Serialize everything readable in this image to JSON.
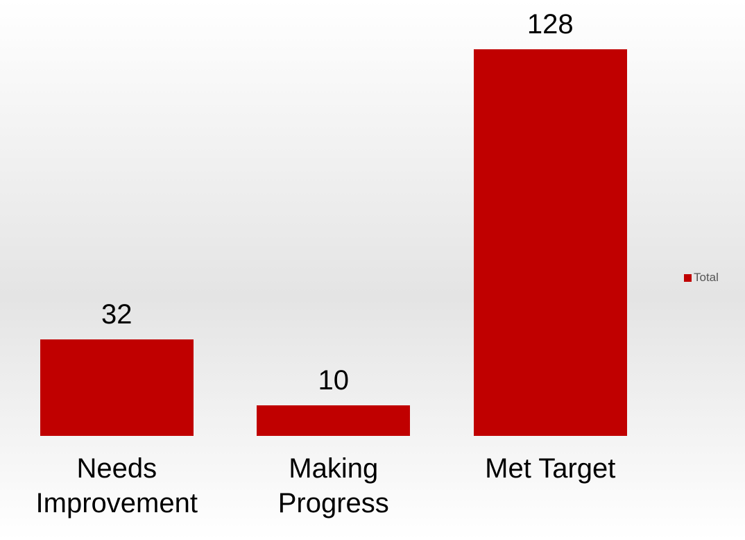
{
  "chart_data": {
    "type": "bar",
    "categories": [
      "Needs Improvement",
      "Making Progress",
      "Met Target"
    ],
    "series": [
      {
        "name": "Total",
        "color": "#c00000",
        "values": [
          32,
          10,
          128
        ]
      }
    ]
  }
}
